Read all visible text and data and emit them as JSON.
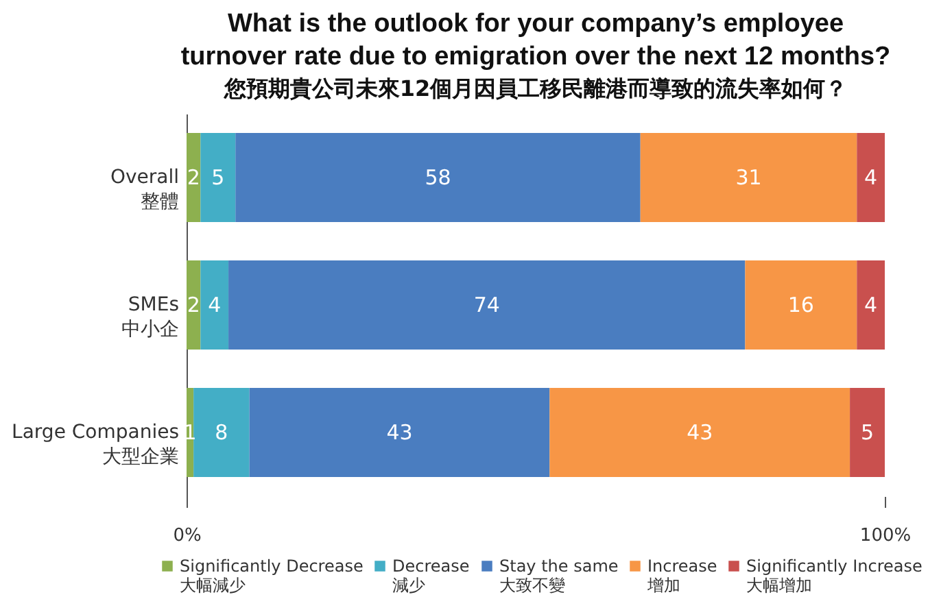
{
  "chart_data": {
    "type": "bar",
    "orientation": "horizontal",
    "stacked": true,
    "title": "What is the outlook for your company’s employee\nturnover rate due to emigration over the next 12 months?",
    "subtitle": "您預期貴公司未來12個月因員工移民離港而導致的流失率如何？",
    "categories": [
      "Overall\n整體",
      "SMEs\n中小企",
      "Large Companies\n大型企業"
    ],
    "series": [
      {
        "name": "Significantly Decrease\n大幅減少",
        "color": "#8db04f",
        "values": [
          2,
          2,
          1
        ]
      },
      {
        "name": "Decrease\n減少",
        "color": "#43aec6",
        "values": [
          5,
          4,
          8
        ]
      },
      {
        "name": "Stay the same\n大致不變",
        "color": "#4a7dc0",
        "values": [
          58,
          74,
          43
        ]
      },
      {
        "name": "Increase\n增加",
        "color": "#f79646",
        "values": [
          31,
          16,
          43
        ]
      },
      {
        "name": "Significantly Increase\n大幅增加",
        "color": "#c9504e",
        "values": [
          4,
          4,
          5
        ]
      }
    ],
    "xlim": [
      0,
      100
    ],
    "xticks": [
      {
        "value": 0,
        "label": "0%"
      },
      {
        "value": 100,
        "label": "100%"
      }
    ],
    "data_labels": true,
    "grid": false,
    "legend": "bottom"
  }
}
